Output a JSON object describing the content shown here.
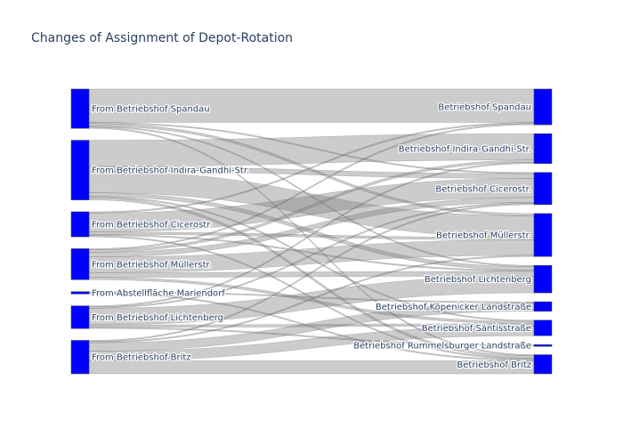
{
  "chart_data": {
    "type": "sankey",
    "title": "Changes of Assignment of Depot-Rotation",
    "colors": {
      "node": "#0000ff",
      "link": "#808080"
    },
    "sources": [
      "From Betriebshof Spandau",
      "From Betriebshof Indira-Gandhi-Str.",
      "From Betriebshof Cicerostr.",
      "From Betriebshof Müllerstr.",
      "From Abstellfläche Mariendorf",
      "From Betriebshof Lichtenberg",
      "From Betriebshof Britz"
    ],
    "targets": [
      "Betriebshof Spandau",
      "Betriebshof Indira-Gandhi-Str.",
      "Betriebshof Cicerostr.",
      "Betriebshof Müllerstr.",
      "Betriebshof Lichtenberg",
      "Betriebshof Köpenicker Landstraße",
      "Betriebshof Säntisstraße",
      "Betriebshof Rummelsburger Landstraße",
      "Betriebshof Britz"
    ],
    "links": [
      {
        "source": 0,
        "target": 0,
        "value": 28
      },
      {
        "source": 0,
        "target": 2,
        "value": 1
      },
      {
        "source": 0,
        "target": 3,
        "value": 2
      },
      {
        "source": 0,
        "target": 4,
        "value": 1
      },
      {
        "source": 0,
        "target": 8,
        "value": 1
      },
      {
        "source": 1,
        "target": 1,
        "value": 22
      },
      {
        "source": 1,
        "target": 2,
        "value": 4
      },
      {
        "source": 1,
        "target": 3,
        "value": 18
      },
      {
        "source": 1,
        "target": 4,
        "value": 3
      },
      {
        "source": 1,
        "target": 6,
        "value": 1
      },
      {
        "source": 1,
        "target": 8,
        "value": 2
      },
      {
        "source": 2,
        "target": 0,
        "value": 1
      },
      {
        "source": 2,
        "target": 2,
        "value": 16
      },
      {
        "source": 2,
        "target": 3,
        "value": 2
      },
      {
        "source": 2,
        "target": 4,
        "value": 1
      },
      {
        "source": 2,
        "target": 8,
        "value": 1
      },
      {
        "source": 3,
        "target": 0,
        "value": 1
      },
      {
        "source": 3,
        "target": 1,
        "value": 2
      },
      {
        "source": 3,
        "target": 2,
        "value": 4
      },
      {
        "source": 3,
        "target": 3,
        "value": 13
      },
      {
        "source": 3,
        "target": 4,
        "value": 4
      },
      {
        "source": 3,
        "target": 6,
        "value": 2
      },
      {
        "source": 4,
        "target": 5,
        "value": 1
      },
      {
        "source": 4,
        "target": 8,
        "value": 1
      },
      {
        "source": 5,
        "target": 1,
        "value": 1
      },
      {
        "source": 5,
        "target": 2,
        "value": 1
      },
      {
        "source": 5,
        "target": 4,
        "value": 14
      },
      {
        "source": 5,
        "target": 6,
        "value": 2
      },
      {
        "source": 5,
        "target": 7,
        "value": 1
      },
      {
        "source": 6,
        "target": 2,
        "value": 1
      },
      {
        "source": 6,
        "target": 3,
        "value": 1
      },
      {
        "source": 6,
        "target": 5,
        "value": 7
      },
      {
        "source": 6,
        "target": 6,
        "value": 8
      },
      {
        "source": 6,
        "target": 8,
        "value": 11
      }
    ]
  }
}
